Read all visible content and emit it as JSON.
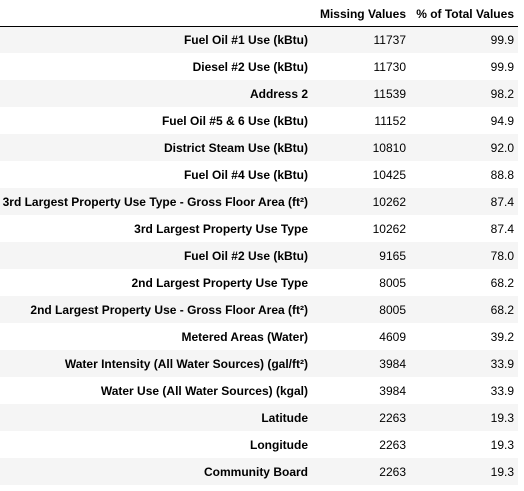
{
  "table": {
    "columns": [
      "Missing Values",
      "% of Total Values"
    ],
    "rows": [
      {
        "label": "Fuel Oil #1 Use (kBtu)",
        "missing": "11737",
        "pct": "99.9"
      },
      {
        "label": "Diesel #2 Use (kBtu)",
        "missing": "11730",
        "pct": "99.9"
      },
      {
        "label": "Address 2",
        "missing": "11539",
        "pct": "98.2"
      },
      {
        "label": "Fuel Oil #5 & 6 Use (kBtu)",
        "missing": "11152",
        "pct": "94.9"
      },
      {
        "label": "District Steam Use (kBtu)",
        "missing": "10810",
        "pct": "92.0"
      },
      {
        "label": "Fuel Oil #4 Use (kBtu)",
        "missing": "10425",
        "pct": "88.8"
      },
      {
        "label": "3rd Largest Property Use Type - Gross Floor Area (ft²)",
        "missing": "10262",
        "pct": "87.4"
      },
      {
        "label": "3rd Largest Property Use Type",
        "missing": "10262",
        "pct": "87.4"
      },
      {
        "label": "Fuel Oil #2 Use (kBtu)",
        "missing": "9165",
        "pct": "78.0"
      },
      {
        "label": "2nd Largest Property Use Type",
        "missing": "8005",
        "pct": "68.2"
      },
      {
        "label": "2nd Largest Property Use - Gross Floor Area (ft²)",
        "missing": "8005",
        "pct": "68.2"
      },
      {
        "label": "Metered Areas (Water)",
        "missing": "4609",
        "pct": "39.2"
      },
      {
        "label": "Water Intensity (All Water Sources) (gal/ft²)",
        "missing": "3984",
        "pct": "33.9"
      },
      {
        "label": "Water Use (All Water Sources) (kgal)",
        "missing": "3984",
        "pct": "33.9"
      },
      {
        "label": "Latitude",
        "missing": "2263",
        "pct": "19.3"
      },
      {
        "label": "Longitude",
        "missing": "2263",
        "pct": "19.3"
      },
      {
        "label": "Community Board",
        "missing": "2263",
        "pct": "19.3"
      }
    ]
  }
}
